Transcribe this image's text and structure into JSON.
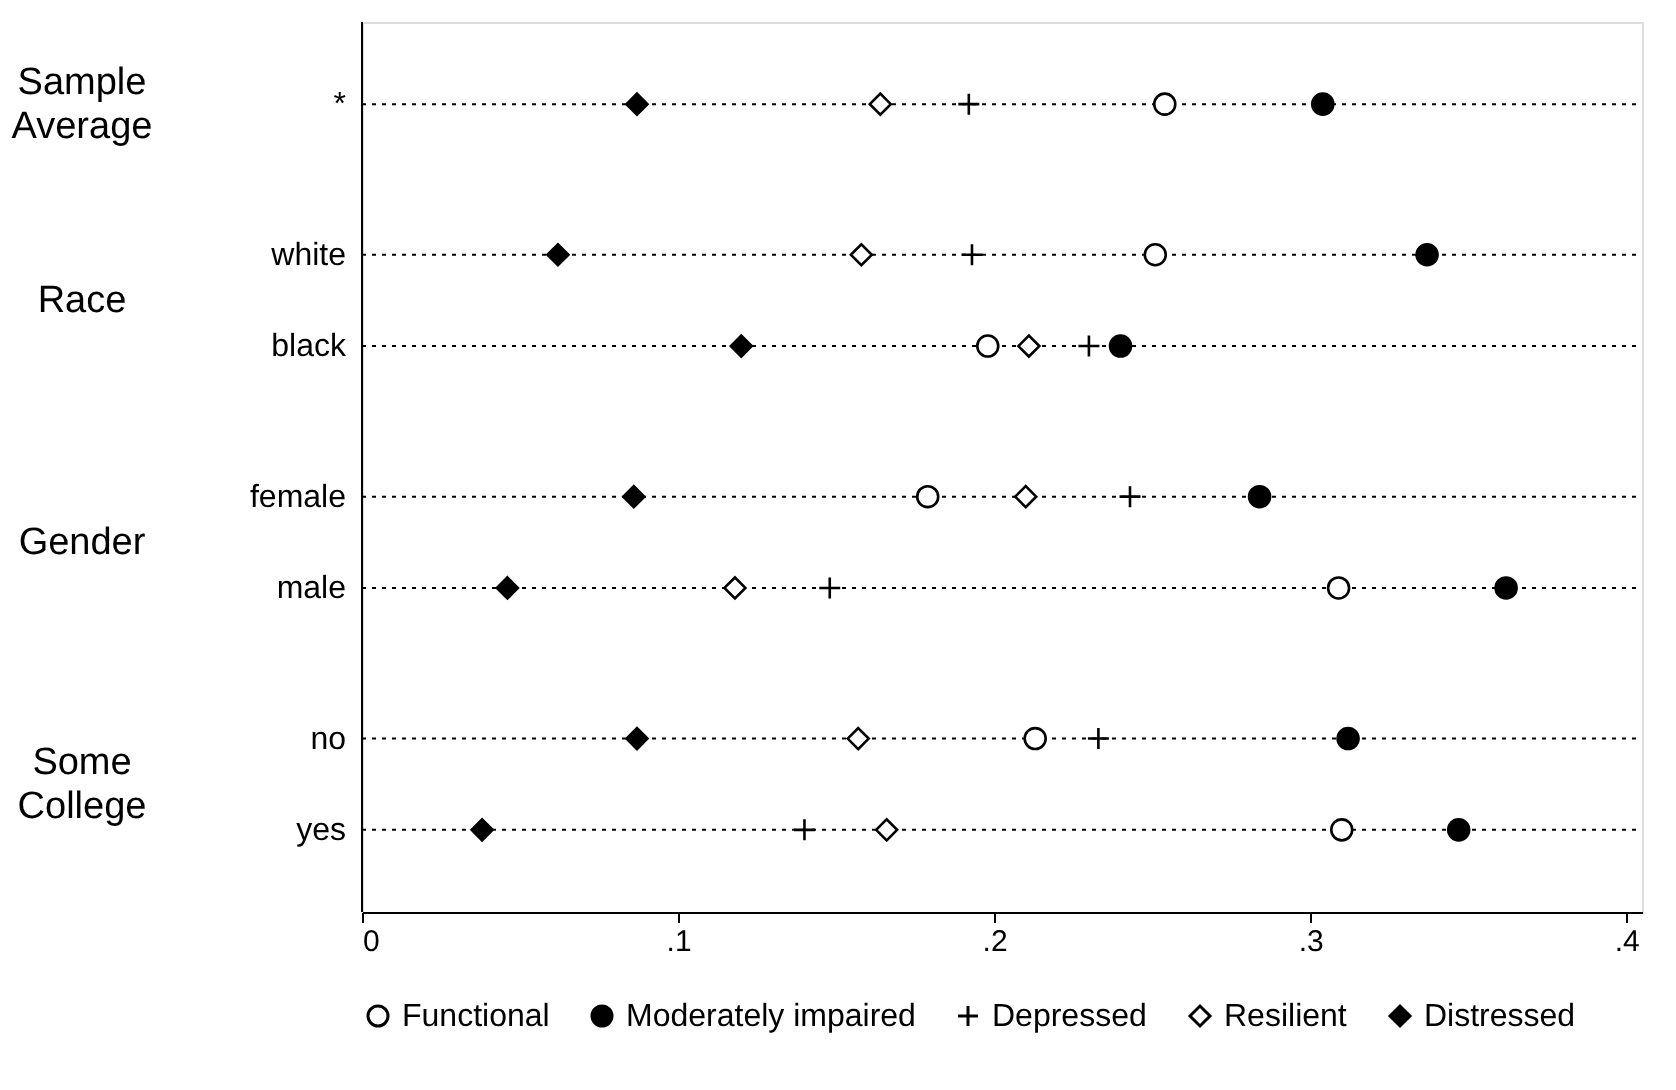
{
  "chart_data": {
    "type": "scatter",
    "orientation": "horizontal",
    "categories": [
      "*",
      "white",
      "black",
      "female",
      "male",
      "no",
      "yes"
    ],
    "annotations": [
      "Sample Average",
      "Race",
      "Gender",
      "Some College"
    ],
    "series": [
      {
        "name": "Functional",
        "color": "#ffffff",
        "marker": "circle",
        "values": [
          0.254,
          0.251,
          0.198,
          0.179,
          0.309,
          0.213,
          0.31
        ]
      },
      {
        "name": "Moderately impaired",
        "color": "#000000",
        "marker": "circle",
        "values": [
          0.304,
          0.337,
          0.24,
          0.284,
          0.362,
          0.312,
          0.347
        ]
      },
      {
        "name": "Depressed",
        "color": "#000000",
        "marker": "cross",
        "values": [
          0.192,
          0.193,
          0.23,
          0.243,
          0.148,
          0.233,
          0.14
        ]
      },
      {
        "name": "Resilient",
        "color": "#ffffff",
        "marker": "diamond",
        "values": [
          0.164,
          0.158,
          0.211,
          0.21,
          0.118,
          0.157,
          0.166
        ]
      },
      {
        "name": "Distressed",
        "color": "#000000",
        "marker": "diamond",
        "values": [
          0.087,
          0.062,
          0.12,
          0.086,
          0.046,
          0.087,
          0.038
        ]
      }
    ],
    "xlim": [
      0,
      0.405
    ],
    "xticks": [
      0,
      {
        "value": 0.1,
        "label": ".1"
      },
      {
        "value": 0.2,
        "label": ".2"
      },
      {
        "value": 0.3,
        "label": ".3"
      },
      {
        "value": 0.4,
        "label": ".4"
      }
    ],
    "grid": "y",
    "line_style": "dotted",
    "legend": "bottom"
  }
}
